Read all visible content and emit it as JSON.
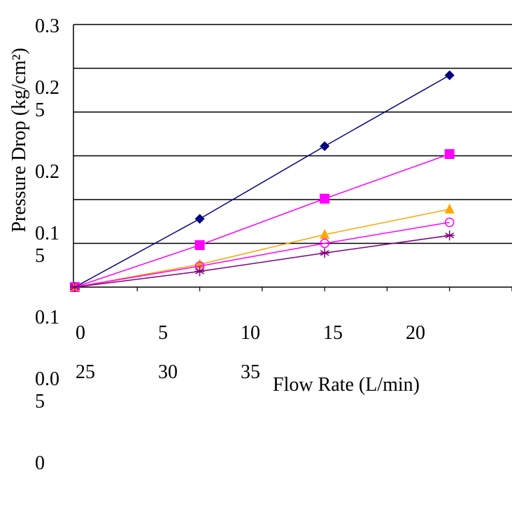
{
  "chart_data": {
    "type": "line",
    "y_label": "Pressure Drop (kg/cm²)",
    "x_label": "Flow Rate (L/min)",
    "x": [
      0,
      10,
      20,
      30
    ],
    "xlim": [
      0,
      35
    ],
    "xticks": [
      0,
      5,
      10,
      15,
      20,
      25,
      30,
      35
    ],
    "ylim": [
      0,
      0.3
    ],
    "yticks": [
      0.3,
      0.25,
      0.2,
      0.15,
      0.1,
      0.05,
      0
    ],
    "grid": true,
    "series": [
      {
        "color": "#000080",
        "marker": "diamond",
        "values": [
          0,
          0.078,
          0.161,
          0.242
        ]
      },
      {
        "color": "#ff00ff",
        "marker": "square",
        "values": [
          0,
          0.048,
          0.101,
          0.152
        ]
      },
      {
        "color": "#ffa500",
        "marker": "triangle",
        "values": [
          0,
          0.026,
          0.06,
          0.089
        ]
      },
      {
        "color": "#ff00ff",
        "marker": "circle",
        "values": [
          0,
          0.024,
          0.05,
          0.074
        ]
      },
      {
        "color": "#800080",
        "marker": "star",
        "values": [
          0,
          0.018,
          0.039,
          0.059
        ]
      }
    ]
  }
}
